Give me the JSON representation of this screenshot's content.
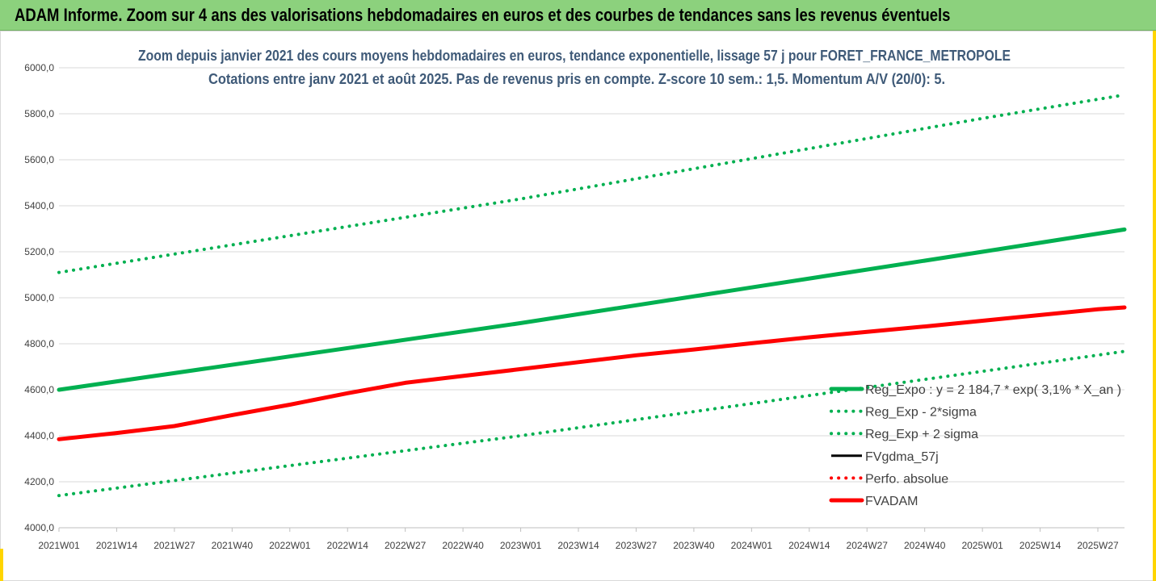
{
  "header": {
    "title": "ADAM Informe. Zoom sur 4 ans des valorisations hebdomadaires en euros et des courbes de tendances sans les revenus éventuels"
  },
  "colors": {
    "banner": "#8cd17d",
    "green": "#00b050",
    "red": "#ff0000",
    "black": "#000000"
  },
  "chart_data": {
    "type": "line",
    "title": "Zoom depuis janvier 2021 des cours moyens hebdomadaires en euros, tendance exponentielle, lissage 57 j pour FORET_FRANCE_METROPOLE",
    "subtitle": "Cotations entre janv 2021 et août 2025.  Pas de revenus pris en compte. Z-score 10 sem.: 1,5. Momentum A/V (20/0): 5.",
    "xlabel": "",
    "ylabel": "",
    "ylim": [
      4000,
      6000
    ],
    "y_ticks": [
      {
        "value": 4000,
        "label": "4000,0"
      },
      {
        "value": 4200,
        "label": "4200,0"
      },
      {
        "value": 4400,
        "label": "4400,0"
      },
      {
        "value": 4600,
        "label": "4600,0"
      },
      {
        "value": 4800,
        "label": "4800,0"
      },
      {
        "value": 5000,
        "label": "5000,0"
      },
      {
        "value": 5200,
        "label": "5200,0"
      },
      {
        "value": 5400,
        "label": "5400,0"
      },
      {
        "value": 5600,
        "label": "5600,0"
      },
      {
        "value": 5800,
        "label": "5800,0"
      },
      {
        "value": 6000,
        "label": "6000,0"
      }
    ],
    "x_ticks": [
      "2021W01",
      "2021W14",
      "2021W27",
      "2021W40",
      "2022W01",
      "2022W14",
      "2022W27",
      "2022W40",
      "2023W01",
      "2023W14",
      "2023W27",
      "2023W40",
      "2024W01",
      "2024W14",
      "2024W27",
      "2024W40",
      "2025W01",
      "2025W14",
      "2025W27"
    ],
    "grid": true,
    "legend_position": "right",
    "series": [
      {
        "name": "Reg_Expo : y = 2 184,7 * exp( 3,1% *  X_an )",
        "style": "solid-thick",
        "color": "#00b050",
        "x": [
          "2021W01",
          "2022W01",
          "2023W01",
          "2024W01",
          "2025W01",
          "2025W33"
        ],
        "values": [
          4600,
          4745,
          4890,
          5045,
          5200,
          5297
        ]
      },
      {
        "name": "Reg_Exp - 2*sigma",
        "style": "dotted",
        "color": "#00b050",
        "x": [
          "2021W01",
          "2022W01",
          "2023W01",
          "2024W01",
          "2025W01",
          "2025W33"
        ],
        "values": [
          4140,
          4270,
          4400,
          4540,
          4680,
          4767
        ]
      },
      {
        "name": "Reg_Exp + 2 sigma",
        "style": "dotted",
        "color": "#00b050",
        "x": [
          "2021W01",
          "2022W01",
          "2023W01",
          "2024W01",
          "2025W01",
          "2025W33"
        ],
        "values": [
          5110,
          5270,
          5430,
          5605,
          5780,
          5882
        ]
      },
      {
        "name": "FVgdma_57j",
        "style": "solid",
        "color": "#000000",
        "x": [],
        "values": []
      },
      {
        "name": "Perfo. absolue",
        "style": "dotted",
        "color": "#ff0000",
        "x": [],
        "values": []
      },
      {
        "name": "FVADAM",
        "style": "solid-thick",
        "color": "#ff0000",
        "x": [
          "2021W01",
          "2021W14",
          "2021W27",
          "2021W40",
          "2022W01",
          "2022W14",
          "2022W27",
          "2022W40",
          "2023W01",
          "2023W14",
          "2023W27",
          "2023W40",
          "2024W01",
          "2024W14",
          "2024W27",
          "2024W40",
          "2025W01",
          "2025W14",
          "2025W27",
          "2025W33"
        ],
        "values": [
          4385,
          4412,
          4442,
          4490,
          4535,
          4585,
          4630,
          4660,
          4690,
          4720,
          4750,
          4775,
          4802,
          4828,
          4852,
          4875,
          4900,
          4925,
          4950,
          4958
        ]
      }
    ]
  }
}
